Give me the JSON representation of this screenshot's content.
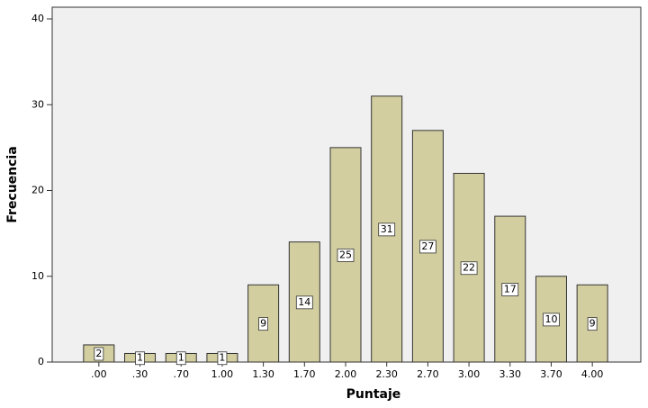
{
  "chart_data": {
    "type": "bar",
    "categories": [
      ".00",
      ".30",
      ".70",
      "1.00",
      "1.30",
      "1.70",
      "2.00",
      "2.30",
      "2.70",
      "3.00",
      "3.30",
      "3.70",
      "4.00"
    ],
    "values": [
      2,
      1,
      1,
      1,
      9,
      14,
      25,
      31,
      27,
      22,
      17,
      10,
      9
    ],
    "color": "#d3cea0",
    "x_label": "Puntaje",
    "y_label": "Frecuencia",
    "ylim": [
      0,
      40
    ],
    "yticks": [
      0,
      10,
      20,
      30,
      40
    ]
  }
}
